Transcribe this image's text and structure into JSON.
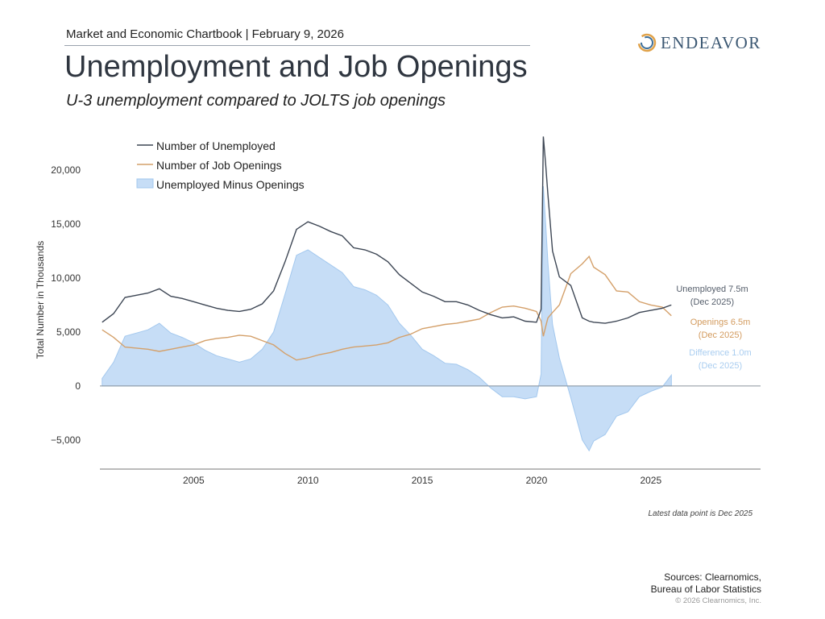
{
  "header": {
    "kicker": "Market and Economic Chartbook | February 9, 2026",
    "title": "Unemployment and Job Openings",
    "subtitle": "U-3 unemployment compared to JOLTS job openings",
    "logo_text": "ENDEAVOR"
  },
  "footer": {
    "latest": "Latest data point is Dec 2025",
    "sources_line1": "Sources: Clearnomics,",
    "sources_line2": "Bureau of Labor Statistics",
    "copyright": "© 2026 Clearnomics, Inc."
  },
  "chart_data": {
    "type": "line",
    "ylabel": "Total Number in Thousands",
    "ylim": [
      -7700,
      23500
    ],
    "xlim": [
      2000.9,
      2029.8
    ],
    "y_ticks": [
      {
        "v": -5000,
        "label": "−5,000"
      },
      {
        "v": 0,
        "label": "0"
      },
      {
        "v": 5000,
        "label": "5,000"
      },
      {
        "v": 10000,
        "label": "10,000"
      },
      {
        "v": 15000,
        "label": "15,000"
      },
      {
        "v": 20000,
        "label": "20,000"
      }
    ],
    "x_ticks": [
      {
        "v": 2005,
        "label": "2005"
      },
      {
        "v": 2010,
        "label": "2010"
      },
      {
        "v": 2015,
        "label": "2015"
      },
      {
        "v": 2020,
        "label": "2020"
      },
      {
        "v": 2025,
        "label": "2025"
      }
    ],
    "grid": false,
    "legend_position": "top-left",
    "colors": {
      "unemployed": "#3d4654",
      "openings": "#d4a06a",
      "difference_fill": "#c6ddf6",
      "difference_line": "#a3c8ee"
    },
    "x": [
      2001,
      2001.5,
      2002,
      2002.5,
      2003,
      2003.5,
      2004,
      2004.5,
      2005,
      2005.5,
      2006,
      2006.5,
      2007,
      2007.5,
      2008,
      2008.5,
      2009,
      2009.5,
      2010,
      2010.5,
      2011,
      2011.5,
      2012,
      2012.5,
      2013,
      2013.5,
      2014,
      2014.5,
      2015,
      2015.5,
      2016,
      2016.5,
      2017,
      2017.5,
      2018,
      2018.5,
      2019,
      2019.5,
      2020,
      2020.2,
      2020.3,
      2020.4,
      2020.5,
      2020.7,
      2021,
      2021.5,
      2022,
      2022.3,
      2022.5,
      2023,
      2023.5,
      2024,
      2024.5,
      2025,
      2025.5,
      2025.9
    ],
    "series": [
      {
        "name": "Number of Unemployed",
        "values": [
          5900,
          6700,
          8200,
          8400,
          8600,
          9000,
          8300,
          8100,
          7800,
          7500,
          7200,
          7000,
          6900,
          7100,
          7600,
          8800,
          11500,
          14500,
          15200,
          14800,
          14300,
          13900,
          12800,
          12600,
          12200,
          11500,
          10300,
          9500,
          8700,
          8300,
          7800,
          7800,
          7500,
          7000,
          6600,
          6300,
          6400,
          6000,
          5900,
          7100,
          23100,
          20500,
          17700,
          12500,
          10100,
          9300,
          6300,
          6000,
          5900,
          5800,
          6000,
          6300,
          6800,
          7000,
          7200,
          7500
        ]
      },
      {
        "name": "Number of Job Openings",
        "values": [
          5200,
          4500,
          3600,
          3500,
          3400,
          3200,
          3400,
          3600,
          3800,
          4200,
          4400,
          4500,
          4700,
          4600,
          4200,
          3800,
          3000,
          2400,
          2600,
          2900,
          3100,
          3400,
          3600,
          3700,
          3800,
          4000,
          4500,
          4800,
          5300,
          5500,
          5700,
          5800,
          6000,
          6200,
          6800,
          7300,
          7400,
          7200,
          6900,
          6000,
          4600,
          5500,
          6300,
          6800,
          7500,
          10400,
          11300,
          12000,
          11000,
          10300,
          8800,
          8700,
          7800,
          7500,
          7300,
          6500
        ]
      },
      {
        "name": "Unemployed Minus Openings"
      }
    ],
    "annotations": [
      {
        "line1": "Unemployed 7.5m",
        "line2": "(Dec 2025)"
      },
      {
        "line1": "Openings 6.5m",
        "line2": "(Dec 2025)"
      },
      {
        "line1": "Difference 1.0m",
        "line2": "(Dec 2025)"
      }
    ]
  }
}
